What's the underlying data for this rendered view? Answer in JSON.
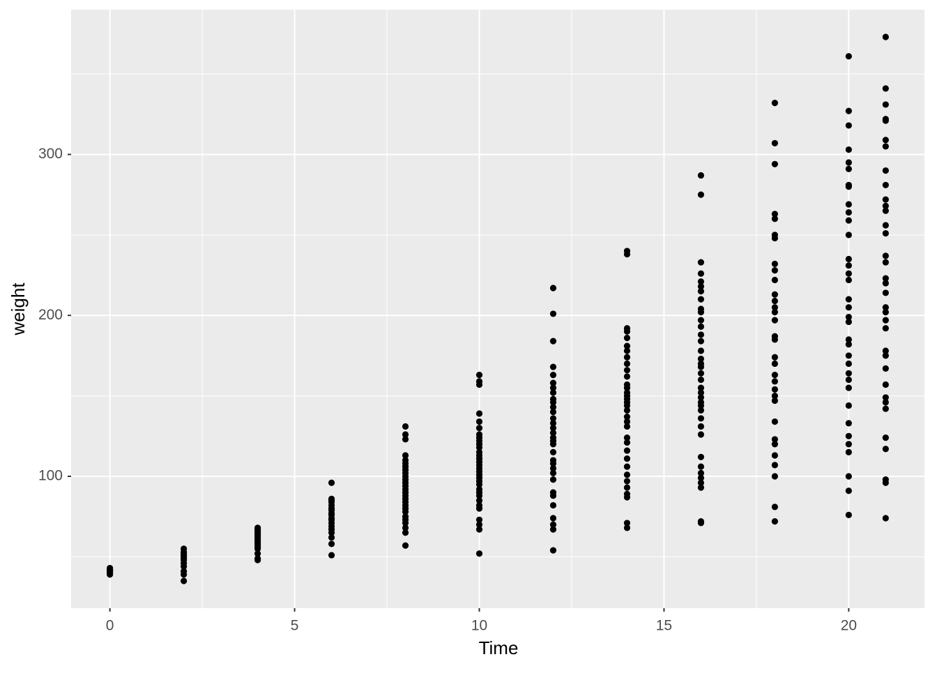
{
  "chart_data": {
    "type": "scatter",
    "x_label": "Time",
    "y_label": "weight",
    "xlim": [
      -1.05,
      22.05
    ],
    "ylim": [
      18.1,
      389.9
    ],
    "xticks": [
      0,
      5,
      10,
      15,
      20
    ],
    "yticks": [
      100,
      200,
      300
    ],
    "minor_xticks": [
      2.5,
      7.5,
      12.5,
      17.5
    ],
    "minor_yticks": [
      50,
      150,
      250,
      350
    ],
    "grid": true,
    "color": "#000000",
    "x": [
      0,
      0,
      0,
      0,
      0,
      0,
      0,
      2,
      2,
      2,
      2,
      2,
      2,
      2,
      2,
      2,
      2,
      2,
      2,
      4,
      4,
      4,
      4,
      4,
      4,
      4,
      4,
      4,
      4,
      4,
      4,
      4,
      4,
      4,
      4,
      4,
      6,
      6,
      6,
      6,
      6,
      6,
      6,
      6,
      6,
      6,
      6,
      6,
      6,
      6,
      6,
      6,
      6,
      6,
      8,
      8,
      8,
      8,
      8,
      8,
      8,
      8,
      8,
      8,
      8,
      8,
      8,
      8,
      8,
      8,
      8,
      8,
      8,
      8,
      8,
      8,
      8,
      8,
      8,
      8,
      8,
      10,
      10,
      10,
      10,
      10,
      10,
      10,
      10,
      10,
      10,
      10,
      10,
      10,
      10,
      10,
      10,
      10,
      10,
      10,
      10,
      10,
      10,
      10,
      10,
      10,
      10,
      10,
      10,
      10,
      10,
      10,
      10,
      12,
      12,
      12,
      12,
      12,
      12,
      12,
      12,
      12,
      12,
      12,
      12,
      12,
      12,
      12,
      12,
      12,
      12,
      12,
      12,
      12,
      12,
      12,
      12,
      12,
      12,
      12,
      12,
      12,
      12,
      12,
      12,
      14,
      14,
      14,
      14,
      14,
      14,
      14,
      14,
      14,
      14,
      14,
      14,
      14,
      14,
      14,
      14,
      14,
      14,
      14,
      14,
      14,
      14,
      14,
      14,
      14,
      14,
      14,
      14,
      14,
      14,
      14,
      14,
      14,
      14,
      16,
      16,
      16,
      16,
      16,
      16,
      16,
      16,
      16,
      16,
      16,
      16,
      16,
      16,
      16,
      16,
      16,
      16,
      16,
      16,
      16,
      16,
      16,
      16,
      16,
      16,
      16,
      16,
      16,
      16,
      16,
      16,
      16,
      16,
      16,
      16,
      16,
      18,
      18,
      18,
      18,
      18,
      18,
      18,
      18,
      18,
      18,
      18,
      18,
      18,
      18,
      18,
      18,
      18,
      18,
      18,
      18,
      18,
      18,
      18,
      18,
      18,
      18,
      18,
      18,
      18,
      18,
      18,
      18,
      20,
      20,
      20,
      20,
      20,
      20,
      20,
      20,
      20,
      20,
      20,
      20,
      20,
      20,
      20,
      20,
      20,
      20,
      20,
      20,
      20,
      20,
      20,
      20,
      20,
      20,
      20,
      20,
      20,
      20,
      20,
      20,
      20,
      20,
      20,
      21,
      21,
      21,
      21,
      21,
      21,
      21,
      21,
      21,
      21,
      21,
      21,
      21,
      21,
      21,
      21,
      21,
      21,
      21,
      21,
      21,
      21,
      21,
      21,
      21,
      21,
      21,
      21,
      21,
      21,
      21,
      21,
      21,
      21,
      21
    ],
    "values": [
      39,
      40,
      41,
      41,
      42,
      42,
      43,
      35,
      39,
      41,
      44,
      46,
      48,
      49,
      50,
      51,
      52,
      53,
      55,
      48,
      49,
      52,
      55,
      56,
      57,
      58,
      59,
      60,
      61,
      62,
      63,
      64,
      65,
      66,
      67,
      68,
      51,
      58,
      62,
      65,
      67,
      69,
      71,
      73,
      74,
      76,
      77,
      79,
      80,
      82,
      84,
      85,
      86,
      96,
      57,
      65,
      68,
      71,
      73,
      75,
      78,
      80,
      82,
      84,
      86,
      88,
      90,
      92,
      94,
      96,
      98,
      100,
      102,
      104,
      106,
      108,
      110,
      113,
      123,
      126,
      131,
      52,
      67,
      70,
      73,
      80,
      82,
      85,
      88,
      90,
      92,
      95,
      97,
      99,
      101,
      103,
      105,
      107,
      109,
      111,
      113,
      115,
      118,
      120,
      122,
      124,
      126,
      130,
      134,
      139,
      157,
      159,
      163,
      54,
      67,
      70,
      74,
      82,
      88,
      90,
      98,
      102,
      105,
      108,
      110,
      115,
      120,
      122,
      124,
      127,
      130,
      133,
      136,
      140,
      143,
      146,
      148,
      152,
      155,
      158,
      163,
      168,
      184,
      201,
      217,
      68,
      71,
      87,
      89,
      93,
      97,
      101,
      106,
      111,
      116,
      121,
      124,
      131,
      134,
      137,
      141,
      144,
      146,
      148,
      150,
      152,
      155,
      157,
      162,
      166,
      170,
      174,
      178,
      181,
      186,
      190,
      192,
      238,
      240,
      71,
      72,
      93,
      96,
      99,
      102,
      106,
      112,
      126,
      131,
      136,
      141,
      144,
      146,
      149,
      152,
      155,
      160,
      164,
      168,
      170,
      173,
      178,
      184,
      188,
      193,
      197,
      202,
      204,
      210,
      215,
      218,
      221,
      226,
      233,
      275,
      287,
      72,
      81,
      100,
      107,
      113,
      120,
      123,
      134,
      147,
      150,
      154,
      159,
      163,
      170,
      174,
      185,
      187,
      197,
      202,
      205,
      209,
      213,
      222,
      228,
      232,
      248,
      250,
      260,
      263,
      294,
      307,
      332,
      76,
      91,
      100,
      115,
      120,
      125,
      133,
      144,
      155,
      160,
      164,
      170,
      175,
      182,
      185,
      196,
      199,
      205,
      210,
      222,
      226,
      231,
      235,
      250,
      259,
      264,
      269,
      280,
      281,
      291,
      295,
      303,
      318,
      327,
      361,
      74,
      96,
      98,
      117,
      124,
      142,
      146,
      149,
      157,
      167,
      175,
      178,
      192,
      197,
      202,
      205,
      214,
      220,
      223,
      233,
      237,
      251,
      256,
      265,
      268,
      272,
      281,
      290,
      305,
      309,
      321,
      322,
      331,
      341,
      373
    ]
  }
}
